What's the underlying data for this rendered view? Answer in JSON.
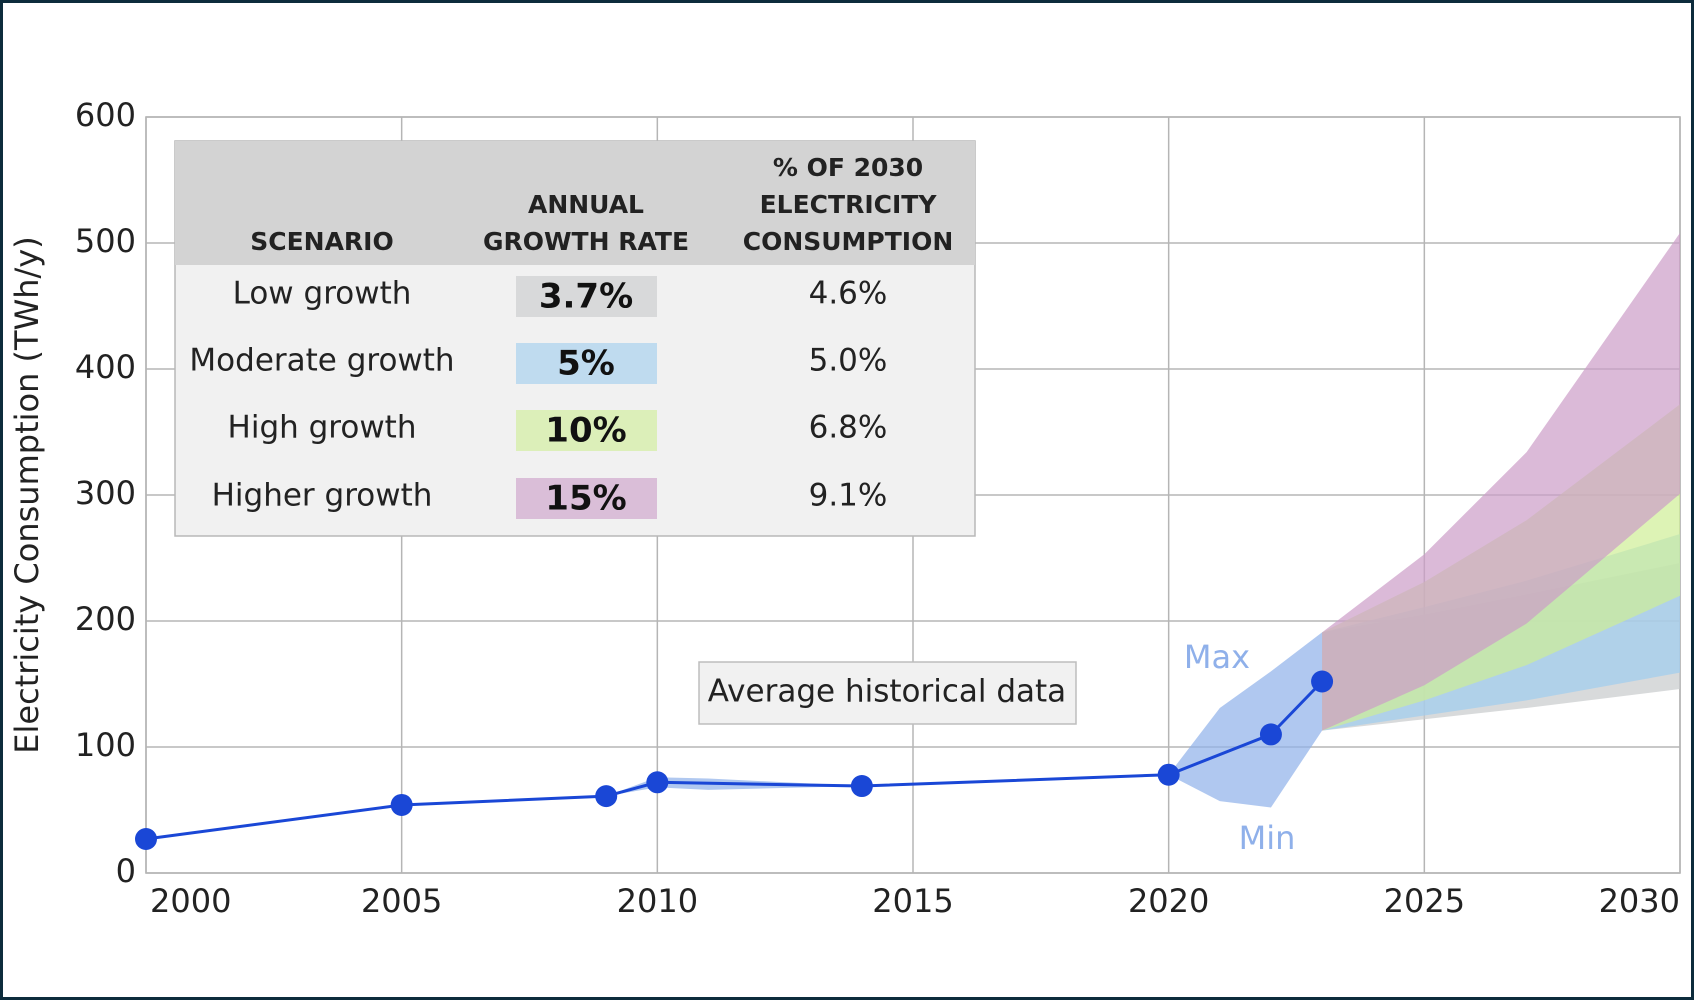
{
  "chart_data": {
    "type": "line",
    "ylabel": "Electricity Consumption (TWh/y)",
    "xlim": [
      2000,
      2030
    ],
    "ylim": [
      0,
      600
    ],
    "xticks": [
      2000,
      2005,
      2010,
      2015,
      2020,
      2025,
      2030
    ],
    "yticks": [
      0,
      100,
      200,
      300,
      400,
      500,
      600
    ],
    "grid": true,
    "historical": {
      "name": "Average historical data",
      "color": "#1a47d6",
      "x": [
        2000,
        2005,
        2009,
        2010,
        2014,
        2020,
        2022,
        2023
      ],
      "values": [
        27,
        54,
        61,
        72,
        69,
        78,
        110,
        152
      ]
    },
    "range": {
      "color": "#8fb0ea",
      "max_label": "Max",
      "min_label": "Min",
      "x": [
        2009,
        2010,
        2011,
        2014,
        2020,
        2021,
        2022,
        2023
      ],
      "max": [
        61,
        76,
        75,
        69,
        78,
        131,
        160,
        191
      ],
      "min": [
        61,
        68,
        66,
        69,
        78,
        57,
        52,
        113
      ]
    },
    "table": {
      "headers": [
        [
          "SCENARIO"
        ],
        [
          "ANNUAL",
          "GROWTH RATE"
        ],
        [
          "% OF 2030",
          "ELECTRICITY",
          "CONSUMPTION"
        ]
      ]
    },
    "scenarios": [
      {
        "name": "Low growth",
        "growth_rate": "3.7%",
        "share": "4.6%",
        "color": "#c8cacc",
        "x": [
          2023,
          2025,
          2027,
          2030
        ],
        "lower": [
          113,
          122,
          131,
          146
        ],
        "upper": [
          191,
          205,
          221,
          246
        ]
      },
      {
        "name": "Moderate growth",
        "growth_rate": "5%",
        "share": "5.0%",
        "color": "#9fcdef",
        "x": [
          2023,
          2025,
          2027,
          2030
        ],
        "lower": [
          113,
          125,
          137,
          159
        ],
        "upper": [
          191,
          211,
          232,
          269
        ]
      },
      {
        "name": "High growth",
        "growth_rate": "10%",
        "share": "6.8%",
        "color": "#cfee95",
        "x": [
          2023,
          2025,
          2027,
          2030
        ],
        "lower": [
          113,
          137,
          165,
          220
        ],
        "upper": [
          191,
          231,
          280,
          372
        ]
      },
      {
        "name": "Higher growth",
        "growth_rate": "15%",
        "share": "9.1%",
        "color": "#cc9dc8",
        "x": [
          2023,
          2025,
          2027,
          2030
        ],
        "lower": [
          113,
          149,
          198,
          301
        ],
        "upper": [
          191,
          253,
          334,
          508
        ]
      }
    ]
  }
}
